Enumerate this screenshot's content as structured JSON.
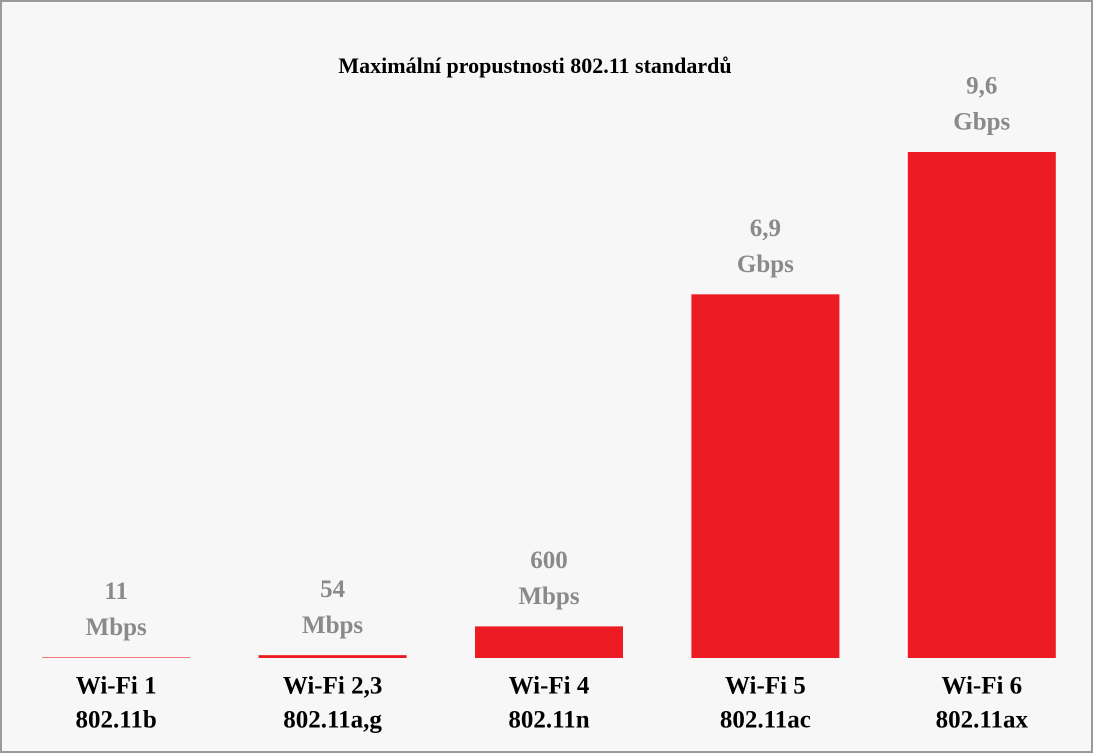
{
  "chart_data": {
    "type": "bar",
    "title": "Maximální propustnosti 802.11 standardů",
    "categories": [
      "Wi-Fi 1",
      "Wi-Fi 2,3",
      "Wi-Fi 4",
      "Wi-Fi 5",
      "Wi-Fi 6"
    ],
    "subcategories": [
      "802.11b",
      "802.11a,g",
      "802.11n",
      "802.11ac",
      "802.11ax"
    ],
    "values": [
      11,
      54,
      600,
      6900,
      9600
    ],
    "value_labels": [
      [
        "11",
        "Mbps"
      ],
      [
        "54",
        "Mbps"
      ],
      [
        "600",
        "Mbps"
      ],
      [
        "6,9",
        "Gbps"
      ],
      [
        "9,6",
        "Gbps"
      ]
    ],
    "color": "#ed1c24"
  }
}
